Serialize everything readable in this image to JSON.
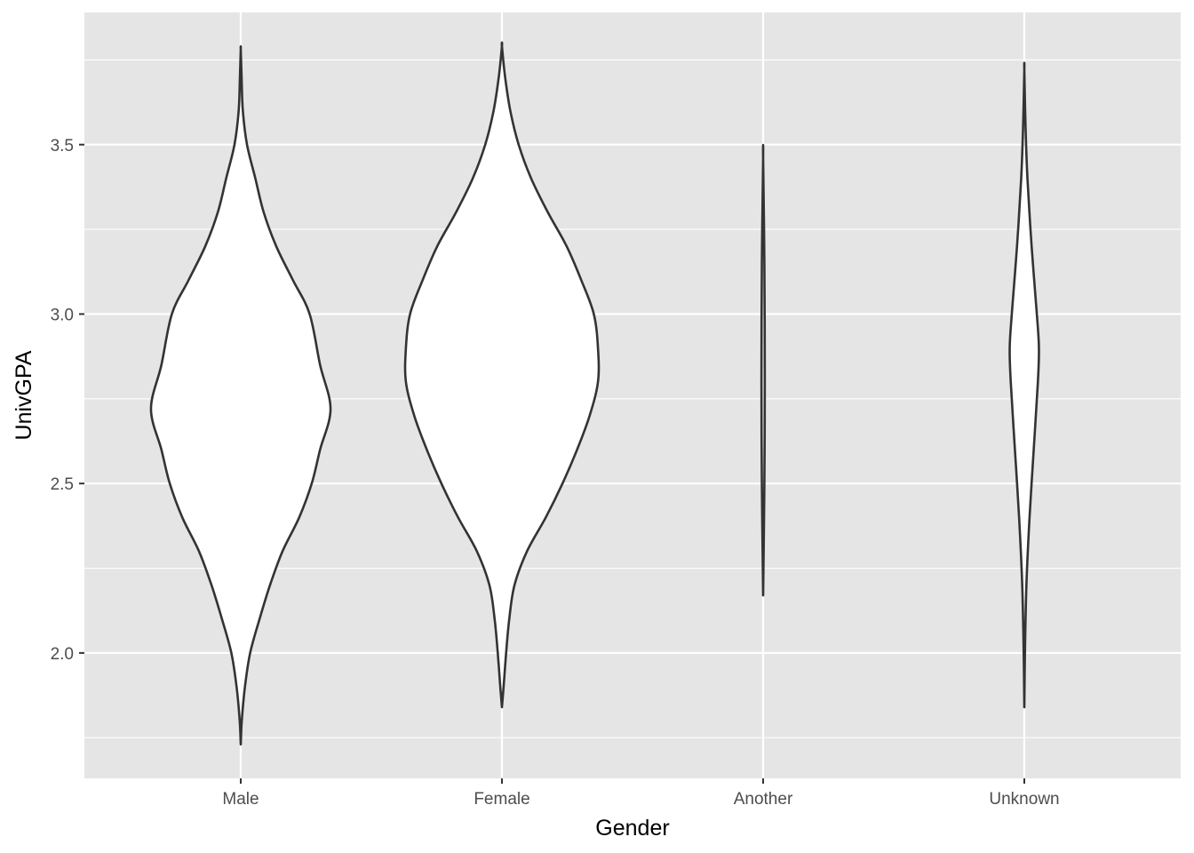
{
  "chart_data": {
    "type": "violin",
    "xlabel": "Gender",
    "ylabel": "UnivGPA",
    "categories": [
      "Male",
      "Female",
      "Another",
      "Unknown"
    ],
    "ylim": [
      1.63,
      3.89
    ],
    "y_ticks": [
      2.0,
      2.5,
      3.0,
      3.5
    ],
    "y_tick_labels": [
      "2.0",
      "2.5",
      "3.0",
      "3.5"
    ],
    "grid": true,
    "violins": [
      {
        "category": "Male",
        "ymin": 1.73,
        "ymax": 3.78,
        "profile": [
          [
            1.73,
            0.0
          ],
          [
            1.8,
            0.005
          ],
          [
            1.9,
            0.02
          ],
          [
            2.0,
            0.045
          ],
          [
            2.1,
            0.09
          ],
          [
            2.2,
            0.14
          ],
          [
            2.3,
            0.2
          ],
          [
            2.4,
            0.28
          ],
          [
            2.5,
            0.34
          ],
          [
            2.6,
            0.38
          ],
          [
            2.72,
            0.43
          ],
          [
            2.85,
            0.38
          ],
          [
            3.0,
            0.33
          ],
          [
            3.1,
            0.25
          ],
          [
            3.2,
            0.17
          ],
          [
            3.3,
            0.11
          ],
          [
            3.4,
            0.07
          ],
          [
            3.5,
            0.03
          ],
          [
            3.6,
            0.01
          ],
          [
            3.7,
            0.004
          ],
          [
            3.78,
            0.0
          ]
        ]
      },
      {
        "category": "Female",
        "ymin": 1.84,
        "ymax": 3.79,
        "profile": [
          [
            1.84,
            0.0
          ],
          [
            1.9,
            0.008
          ],
          [
            2.0,
            0.02
          ],
          [
            2.1,
            0.035
          ],
          [
            2.2,
            0.06
          ],
          [
            2.3,
            0.12
          ],
          [
            2.4,
            0.21
          ],
          [
            2.5,
            0.29
          ],
          [
            2.6,
            0.36
          ],
          [
            2.7,
            0.42
          ],
          [
            2.8,
            0.46
          ],
          [
            2.9,
            0.46
          ],
          [
            3.0,
            0.44
          ],
          [
            3.1,
            0.38
          ],
          [
            3.2,
            0.31
          ],
          [
            3.3,
            0.22
          ],
          [
            3.4,
            0.14
          ],
          [
            3.5,
            0.08
          ],
          [
            3.6,
            0.04
          ],
          [
            3.7,
            0.015
          ],
          [
            3.79,
            0.0
          ]
        ]
      },
      {
        "category": "Another",
        "ymin": 2.17,
        "ymax": 3.46,
        "profile": [
          [
            2.17,
            0.0
          ],
          [
            2.5,
            0.006
          ],
          [
            2.8,
            0.008
          ],
          [
            3.15,
            0.006
          ],
          [
            3.46,
            0.0
          ]
        ]
      },
      {
        "category": "Unknown",
        "ymin": 1.84,
        "ymax": 3.72,
        "profile": [
          [
            1.84,
            0.0
          ],
          [
            2.0,
            0.003
          ],
          [
            2.2,
            0.01
          ],
          [
            2.4,
            0.025
          ],
          [
            2.6,
            0.045
          ],
          [
            2.8,
            0.065
          ],
          [
            2.9,
            0.07
          ],
          [
            3.0,
            0.06
          ],
          [
            3.2,
            0.035
          ],
          [
            3.4,
            0.015
          ],
          [
            3.55,
            0.006
          ],
          [
            3.72,
            0.0
          ]
        ]
      }
    ],
    "colors": {
      "panel_background": "#e5e5e5",
      "grid_line": "#ffffff",
      "violin_fill": "#ffffff",
      "violin_outline": "#333333",
      "tick_mark": "#333333",
      "tick_label": "#4d4d4d",
      "axis_title": "#000000"
    }
  }
}
